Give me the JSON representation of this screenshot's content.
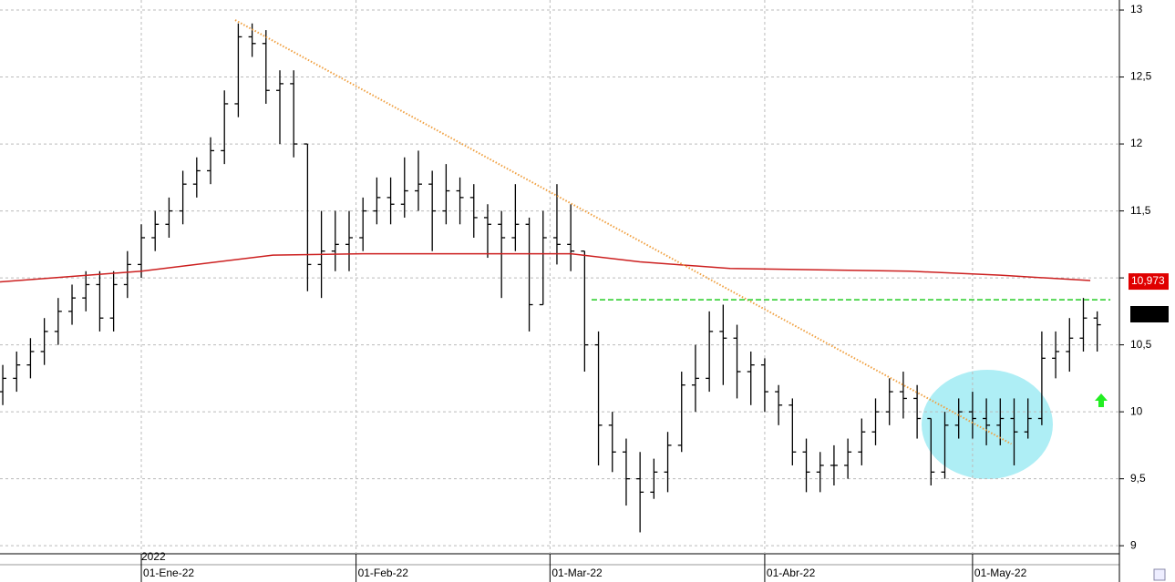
{
  "chart_data": {
    "type": "ohlc",
    "year_label": "2022",
    "grid": true,
    "xlim": [
      -20.4,
      141.2
    ],
    "xticks": [
      {
        "value": 0,
        "label": "01-Ene-22"
      },
      {
        "value": 31,
        "label": "01-Feb-22"
      },
      {
        "value": 59,
        "label": "01-Mar-22"
      },
      {
        "value": 90,
        "label": "01-Abr-22"
      },
      {
        "value": 120,
        "label": "01-May-22"
      }
    ],
    "ylim": [
      8.94,
      13.075
    ],
    "yticks": [
      {
        "value": 9,
        "label": "9"
      },
      {
        "value": 9.5,
        "label": "9,5"
      },
      {
        "value": 10,
        "label": "10"
      },
      {
        "value": 10.5,
        "label": "10,5"
      },
      {
        "value": 11,
        "label": "11"
      },
      {
        "value": 11.5,
        "label": "11,5"
      },
      {
        "value": 12,
        "label": "12"
      },
      {
        "value": 12.5,
        "label": "12,5"
      },
      {
        "value": 13,
        "label": "13"
      }
    ],
    "bars": {
      "color": "#000000",
      "x": [
        -20,
        -18,
        -16,
        -14,
        -12,
        -10,
        -8,
        -6,
        -4,
        -2,
        0,
        2,
        4,
        6,
        8,
        10,
        12,
        14,
        16,
        18,
        20,
        22,
        24,
        26,
        28,
        30,
        32,
        34,
        36,
        38,
        40,
        42,
        44,
        46,
        48,
        50,
        52,
        54,
        56,
        58,
        60,
        62,
        64,
        66,
        68,
        70,
        72,
        74,
        76,
        78,
        80,
        82,
        84,
        86,
        88,
        90,
        92,
        94,
        96,
        98,
        100,
        102,
        104,
        106,
        108,
        110,
        112,
        114,
        116,
        118,
        120,
        122,
        124,
        126,
        128,
        130,
        132,
        134,
        136,
        138
      ],
      "open": [
        10.15,
        10.25,
        10.35,
        10.45,
        10.6,
        10.75,
        10.85,
        10.95,
        10.7,
        10.95,
        11.1,
        11.3,
        11.4,
        11.5,
        11.7,
        11.8,
        11.95,
        12.3,
        12.8,
        12.75,
        12.4,
        12.45,
        12.0,
        11.1,
        11.2,
        11.25,
        11.3,
        11.5,
        11.6,
        11.55,
        11.65,
        11.7,
        11.5,
        11.65,
        11.6,
        11.45,
        11.4,
        11.3,
        11.4,
        10.8,
        11.3,
        11.25,
        11.2,
        10.5,
        9.9,
        9.7,
        9.5,
        9.4,
        9.55,
        9.75,
        10.2,
        10.25,
        10.6,
        10.55,
        10.3,
        10.35,
        10.15,
        10.05,
        9.7,
        9.55,
        9.6,
        9.6,
        9.7,
        9.85,
        10.0,
        10.15,
        10.1,
        9.95,
        9.55,
        9.9,
        10.0,
        9.95,
        9.9,
        9.95,
        9.85,
        9.95,
        10.4,
        10.45,
        10.55,
        10.7
      ],
      "high": [
        10.35,
        10.45,
        10.55,
        10.7,
        10.85,
        10.95,
        11.05,
        11.05,
        11.05,
        11.2,
        11.4,
        11.5,
        11.6,
        11.8,
        11.9,
        12.05,
        12.4,
        12.9,
        12.9,
        12.85,
        12.55,
        12.55,
        12.0,
        11.5,
        11.5,
        11.5,
        11.6,
        11.75,
        11.75,
        11.9,
        11.95,
        11.8,
        11.85,
        11.75,
        11.7,
        11.55,
        11.5,
        11.7,
        11.45,
        11.5,
        11.7,
        11.55,
        11.2,
        10.6,
        10.0,
        9.8,
        9.7,
        9.65,
        9.85,
        10.3,
        10.5,
        10.75,
        10.8,
        10.65,
        10.45,
        10.4,
        10.2,
        10.1,
        9.8,
        9.7,
        9.75,
        9.8,
        9.95,
        10.1,
        10.25,
        10.3,
        10.2,
        9.95,
        10.0,
        10.1,
        10.15,
        10.1,
        10.1,
        10.1,
        10.1,
        10.6,
        10.6,
        10.7,
        10.85,
        10.75
      ],
      "low": [
        10.05,
        10.15,
        10.25,
        10.35,
        10.5,
        10.65,
        10.75,
        10.6,
        10.6,
        10.85,
        11.0,
        11.2,
        11.3,
        11.4,
        11.6,
        11.7,
        11.85,
        12.2,
        12.65,
        12.3,
        12.0,
        11.9,
        10.9,
        10.85,
        11.05,
        11.05,
        11.2,
        11.4,
        11.4,
        11.45,
        11.5,
        11.2,
        11.4,
        11.4,
        11.3,
        11.15,
        10.85,
        11.2,
        10.6,
        10.8,
        11.1,
        11.05,
        10.3,
        9.6,
        9.55,
        9.3,
        9.1,
        9.35,
        9.4,
        9.7,
        10.0,
        10.15,
        10.2,
        10.1,
        10.05,
        10.0,
        9.9,
        9.6,
        9.4,
        9.4,
        9.45,
        9.5,
        9.6,
        9.75,
        9.9,
        9.95,
        9.8,
        9.45,
        9.5,
        9.8,
        9.8,
        9.75,
        9.75,
        9.6,
        9.8,
        9.9,
        10.25,
        10.3,
        10.45,
        10.45
      ],
      "close": [
        10.25,
        10.35,
        10.45,
        10.6,
        10.75,
        10.85,
        10.95,
        10.7,
        10.95,
        11.1,
        11.3,
        11.4,
        11.5,
        11.7,
        11.8,
        11.95,
        12.3,
        12.8,
        12.75,
        12.4,
        12.45,
        12.0,
        11.1,
        11.2,
        11.25,
        11.3,
        11.5,
        11.6,
        11.55,
        11.65,
        11.7,
        11.5,
        11.65,
        11.6,
        11.45,
        11.4,
        11.3,
        11.4,
        10.8,
        11.3,
        11.25,
        11.2,
        10.5,
        9.9,
        9.7,
        9.5,
        9.4,
        9.55,
        9.75,
        10.2,
        10.25,
        10.6,
        10.55,
        10.3,
        10.35,
        10.15,
        10.05,
        9.7,
        9.55,
        9.6,
        9.6,
        9.7,
        9.85,
        10.0,
        10.15,
        10.1,
        9.95,
        9.55,
        9.9,
        10.0,
        9.95,
        9.9,
        9.95,
        9.85,
        9.95,
        10.4,
        10.45,
        10.55,
        10.7,
        10.65
      ]
    },
    "moving_average": {
      "color": "#cc1f1f",
      "x": [
        -20.4,
        0,
        19,
        32,
        62,
        72,
        85,
        111,
        124,
        137
      ],
      "values": [
        10.97,
        11.05,
        11.17,
        11.18,
        11.18,
        11.12,
        11.07,
        11.05,
        11.02,
        10.98
      ],
      "end_label": {
        "value": 10.973,
        "label": "10,973"
      }
    },
    "trendline": {
      "color": "#f0a040",
      "x": [
        13.55,
        125.6
      ],
      "values": [
        12.925,
        9.76
      ]
    },
    "resistance": {
      "color": "#22cc22",
      "x": [
        65,
        139.9
      ],
      "values": [
        10.837,
        10.837
      ]
    }
  }
}
